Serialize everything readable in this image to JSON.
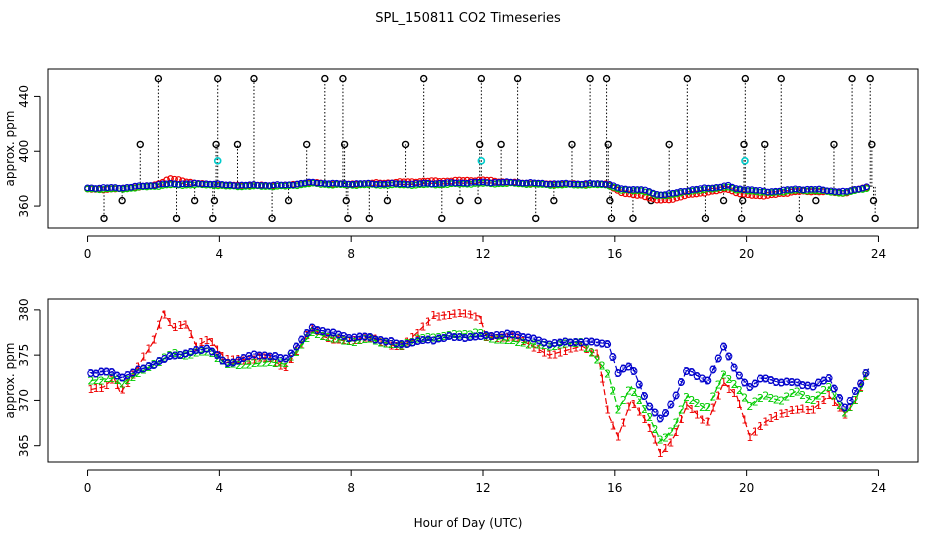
{
  "chart_data": {
    "title": "SPL_150811  CO2 Timeseries",
    "xlabel": "Hour of Day (UTC)",
    "colors": {
      "raw": "#000000",
      "series1": "#ee0000",
      "series2": "#00cc00",
      "series3": "#0000cc",
      "flagged": "#00cccc"
    },
    "panels": [
      {
        "name": "top",
        "type": "scatter",
        "ylabel": "approx. ppm",
        "xlim": [
          -1.2,
          25.2
        ],
        "ylim": [
          344,
          460
        ],
        "xticks": [
          0,
          4,
          8,
          12,
          16,
          20,
          24
        ],
        "yticks": [
          360,
          400,
          440
        ],
        "ytick_labels": [
          "360",
          "400",
          "440"
        ],
        "baseline": {
          "x": [
            0,
            0.5,
            1,
            1.5,
            2,
            2.5,
            3,
            3.5,
            3.8,
            4.2,
            5,
            6,
            6.8,
            7.5,
            7.9,
            8.2,
            9,
            10,
            11,
            11.9,
            12.1,
            13,
            14,
            15,
            15.5,
            15.8,
            16.2,
            16.8,
            17.3,
            17.8,
            18.4,
            19,
            19.4,
            19.7,
            20.1,
            20.6,
            21,
            21.5,
            22,
            22.5,
            23,
            23.5,
            23.7
          ],
          "y": [
            373,
            373,
            373,
            374,
            375,
            376,
            376,
            376,
            376,
            375,
            375,
            375,
            377,
            376,
            376,
            376,
            376,
            376,
            376.5,
            377,
            377,
            377,
            376,
            376,
            376,
            376,
            372,
            372,
            368,
            369,
            372,
            373,
            375,
            372,
            372,
            370,
            371,
            372,
            372,
            371,
            370,
            373,
            374
          ]
        },
        "series1_offset_x": [
          0,
          2,
          2.5,
          3.5,
          4.2,
          8,
          10,
          12,
          13,
          15.8,
          16.5,
          17.5,
          19.5,
          20,
          21,
          23.7
        ],
        "series1_offset_y": [
          -1,
          0,
          4,
          0,
          0,
          0,
          2,
          2,
          0,
          0,
          -4,
          -4,
          -2,
          -4,
          -2,
          0
        ],
        "spikes": [
          {
            "x": 0.5,
            "y": 351
          },
          {
            "x": 1.05,
            "y": 364
          },
          {
            "x": 1.6,
            "y": 405
          },
          {
            "x": 2.15,
            "y": 453
          },
          {
            "x": 2.7,
            "y": 351
          },
          {
            "x": 3.25,
            "y": 364
          },
          {
            "x": 3.8,
            "y": 351
          },
          {
            "x": 3.85,
            "y": 364
          },
          {
            "x": 3.9,
            "y": 405
          },
          {
            "x": 3.95,
            "y": 453
          },
          {
            "x": 4.55,
            "y": 405
          },
          {
            "x": 5.05,
            "y": 453
          },
          {
            "x": 5.6,
            "y": 351
          },
          {
            "x": 6.1,
            "y": 364
          },
          {
            "x": 6.65,
            "y": 405
          },
          {
            "x": 7.2,
            "y": 453
          },
          {
            "x": 7.75,
            "y": 453
          },
          {
            "x": 7.8,
            "y": 405
          },
          {
            "x": 7.85,
            "y": 364
          },
          {
            "x": 7.9,
            "y": 351
          },
          {
            "x": 8.55,
            "y": 351
          },
          {
            "x": 9.1,
            "y": 364
          },
          {
            "x": 9.65,
            "y": 405
          },
          {
            "x": 10.2,
            "y": 453
          },
          {
            "x": 10.75,
            "y": 351
          },
          {
            "x": 11.3,
            "y": 364
          },
          {
            "x": 11.85,
            "y": 364
          },
          {
            "x": 11.9,
            "y": 405
          },
          {
            "x": 11.95,
            "y": 453
          },
          {
            "x": 12.55,
            "y": 405
          },
          {
            "x": 13.05,
            "y": 453
          },
          {
            "x": 13.6,
            "y": 351
          },
          {
            "x": 14.15,
            "y": 364
          },
          {
            "x": 14.7,
            "y": 405
          },
          {
            "x": 15.25,
            "y": 453
          },
          {
            "x": 15.75,
            "y": 453
          },
          {
            "x": 15.8,
            "y": 405
          },
          {
            "x": 15.85,
            "y": 364
          },
          {
            "x": 15.9,
            "y": 351
          },
          {
            "x": 16.55,
            "y": 351
          },
          {
            "x": 17.1,
            "y": 364
          },
          {
            "x": 17.65,
            "y": 405
          },
          {
            "x": 18.2,
            "y": 453
          },
          {
            "x": 18.75,
            "y": 351
          },
          {
            "x": 19.3,
            "y": 364
          },
          {
            "x": 19.85,
            "y": 351
          },
          {
            "x": 19.88,
            "y": 364
          },
          {
            "x": 19.92,
            "y": 405
          },
          {
            "x": 19.96,
            "y": 453
          },
          {
            "x": 20.55,
            "y": 405
          },
          {
            "x": 21.05,
            "y": 453
          },
          {
            "x": 21.6,
            "y": 351
          },
          {
            "x": 22.1,
            "y": 364
          },
          {
            "x": 22.65,
            "y": 405
          },
          {
            "x": 23.2,
            "y": 453
          },
          {
            "x": 23.75,
            "y": 453
          },
          {
            "x": 23.8,
            "y": 405
          },
          {
            "x": 23.85,
            "y": 364
          },
          {
            "x": 23.9,
            "y": 351
          }
        ],
        "flagged_points": [
          {
            "x": 3.95,
            "y": 393
          },
          {
            "x": 11.95,
            "y": 393
          },
          {
            "x": 19.95,
            "y": 393
          }
        ]
      },
      {
        "name": "bottom",
        "type": "line",
        "ylabel": "approx. ppm",
        "xlim": [
          -1.2,
          25.2
        ],
        "ylim": [
          363.2,
          381.2
        ],
        "xticks": [
          0,
          4,
          8,
          12,
          16,
          20,
          24
        ],
        "yticks": [
          365,
          370,
          375,
          380
        ],
        "ytick_labels": [
          "365",
          "370",
          "375",
          "380"
        ],
        "series": [
          {
            "name": "1",
            "label_char": "1",
            "color": "#ee0000",
            "x": [
              0.1,
              0.5,
              0.8,
              1.0,
              1.4,
              2.0,
              2.3,
              2.6,
              3.0,
              3.3,
              3.7,
              4.2,
              5.0,
              5.5,
              6.0,
              6.8,
              7.2,
              7.9,
              8.5,
              9.5,
              10.0,
              10.5,
              11.0,
              11.5,
              11.9,
              12.1,
              13.0,
              14.0,
              15.0,
              15.5,
              15.8,
              16.1,
              16.5,
              17.0,
              17.4,
              17.8,
              18.2,
              18.8,
              19.3,
              19.7,
              20.1,
              20.5,
              21.0,
              21.5,
              22.0,
              22.5,
              23.0,
              23.3,
              23.7
            ],
            "y": [
              371.2,
              371.5,
              372.5,
              370.8,
              373.0,
              376.5,
              379.8,
              378.0,
              378.5,
              376.0,
              376.8,
              374.5,
              374.5,
              374.8,
              373.5,
              378.0,
              377.0,
              376.5,
              377.0,
              375.8,
              377.5,
              379.3,
              379.5,
              379.6,
              379.3,
              377.0,
              377.0,
              375.0,
              376.0,
              375.0,
              368.5,
              366.0,
              370.0,
              367.5,
              364.0,
              366.0,
              369.5,
              367.5,
              372.0,
              370.5,
              366.0,
              367.5,
              368.5,
              369.0,
              369.0,
              370.5,
              368.5,
              370.0,
              373.5
            ]
          },
          {
            "name": "2",
            "label_char": "2",
            "color": "#00cc00",
            "x": [
              0.1,
              0.8,
              1.0,
              2.0,
              2.6,
              3.0,
              3.7,
              4.2,
              5.0,
              5.5,
              6.0,
              6.8,
              7.9,
              8.5,
              9.5,
              10.0,
              11.0,
              11.9,
              12.1,
              13.0,
              14.0,
              15.0,
              15.8,
              16.1,
              16.5,
              17.0,
              17.4,
              17.8,
              18.2,
              18.8,
              19.3,
              19.7,
              20.1,
              20.5,
              21.0,
              21.5,
              22.0,
              22.5,
              23.0,
              23.3,
              23.7
            ],
            "y": [
              372.2,
              372.5,
              371.8,
              374.0,
              375.2,
              375.0,
              375.5,
              374.0,
              374.0,
              374.3,
              374.0,
              377.5,
              376.5,
              376.8,
              376.0,
              376.8,
              377.2,
              377.5,
              377.0,
              376.5,
              376.0,
              376.5,
              373.0,
              369.0,
              371.5,
              368.5,
              365.5,
              367.0,
              370.5,
              369.0,
              373.0,
              371.5,
              369.5,
              370.5,
              370.0,
              371.0,
              370.0,
              371.5,
              368.5,
              370.0,
              373.5
            ]
          },
          {
            "name": "3",
            "label_char": "3",
            "color": "#0000cc",
            "x": [
              0.1,
              0.5,
              0.8,
              1.0,
              2.0,
              2.6,
              3.0,
              3.7,
              4.2,
              5.0,
              5.5,
              6.0,
              6.8,
              7.9,
              8.5,
              9.5,
              10.0,
              11.0,
              11.9,
              12.1,
              13.0,
              14.0,
              15.0,
              15.8,
              16.1,
              16.5,
              17.0,
              17.4,
              17.8,
              18.2,
              18.8,
              19.3,
              19.7,
              20.1,
              20.5,
              21.0,
              21.5,
              22.0,
              22.5,
              23.0,
              23.3,
              23.7
            ],
            "y": [
              373.0,
              373.2,
              373.0,
              372.5,
              374.0,
              375.0,
              375.2,
              375.8,
              374.0,
              375.0,
              375.0,
              374.5,
              378.0,
              377.0,
              377.0,
              376.2,
              376.5,
              377.0,
              377.0,
              377.2,
              377.3,
              376.3,
              376.5,
              376.3,
              373.0,
              374.0,
              369.5,
              368.0,
              370.0,
              373.5,
              372.0,
              376.0,
              373.0,
              371.5,
              372.5,
              372.0,
              372.0,
              371.5,
              372.5,
              369.0,
              371.0,
              373.5
            ]
          }
        ]
      }
    ]
  }
}
